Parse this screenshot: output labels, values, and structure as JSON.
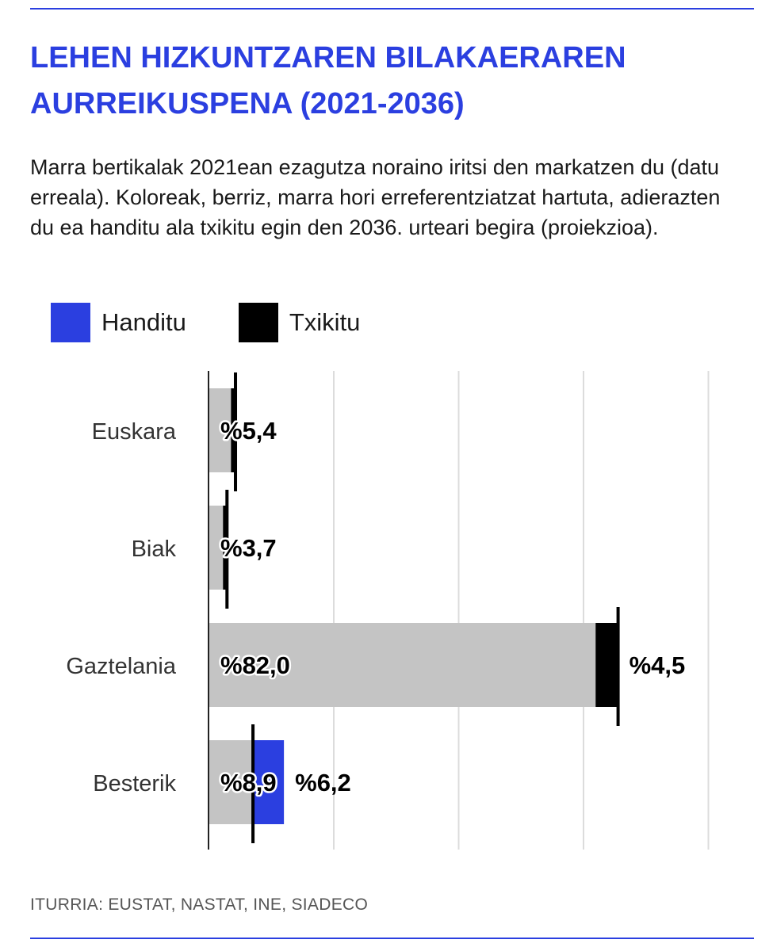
{
  "title": "LEHEN HIZKUNTZAREN BILAKAERAREN AURREIKUSPENA (2021-2036)",
  "subtitle": "Marra bertikalak 2021ean ezagutza noraino iritsi den markatzen du (datu erreala). Koloreak, berriz, marra hori erreferentziatzat hartuta, adierazten du ea handitu ala txikitu egin den 2036. urteari begira (proiekzioa).",
  "legend": [
    {
      "label": "Handitu",
      "color": "#2b3fe0"
    },
    {
      "label": "Txikitu",
      "color": "#000000"
    }
  ],
  "source": "ITURRIA: EUSTAT, NASTAT, INE, SIADECO",
  "chart_data": {
    "type": "bar",
    "orientation": "horizontal",
    "xlim": [
      0,
      100
    ],
    "grid": true,
    "colors": {
      "base": "#c4c4c4",
      "increase": "#2b3fe0",
      "decrease": "#000000",
      "marker": "#000000"
    },
    "categories": [
      {
        "name": "Euskara",
        "value_2021": 5.4,
        "value_2036": 4.5,
        "label_2021": "%5,4",
        "change": "decrease",
        "label_change": ""
      },
      {
        "name": "Biak",
        "value_2021": 3.7,
        "value_2036": 2.9,
        "label_2021": "%3,7",
        "change": "decrease",
        "label_change": ""
      },
      {
        "name": "Gaztelania",
        "value_2021": 82.0,
        "value_2036": 77.5,
        "label_2021": "%82,0",
        "change": "decrease",
        "label_change": "%4,5"
      },
      {
        "name": "Besterik",
        "value_2021": 8.9,
        "value_2036": 15.1,
        "label_2021": "%8,9",
        "change": "increase",
        "label_change": "%6,2"
      }
    ]
  }
}
